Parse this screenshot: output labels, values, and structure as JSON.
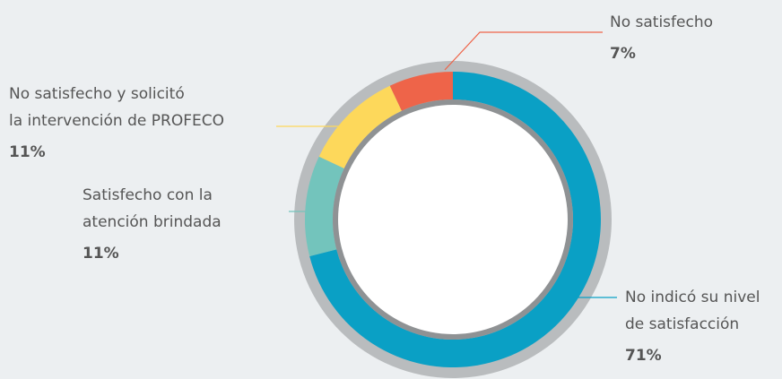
{
  "chart_data": {
    "type": "donut",
    "categories": [
      [
        "No indicó su nivel",
        "de satisfacción"
      ],
      [
        "Satisfecho con la",
        "atención brindada"
      ],
      [
        "No satisfecho y solicitó",
        "la intervención de PROFECO"
      ],
      [
        "No satisfecho"
      ]
    ],
    "values": [
      71,
      11,
      11,
      7
    ],
    "value_labels": [
      "71%",
      "11%",
      "11%",
      "7%"
    ],
    "colors": [
      "#0aa0c5",
      "#73c4bc",
      "#fdd85b",
      "#ee6449"
    ]
  }
}
